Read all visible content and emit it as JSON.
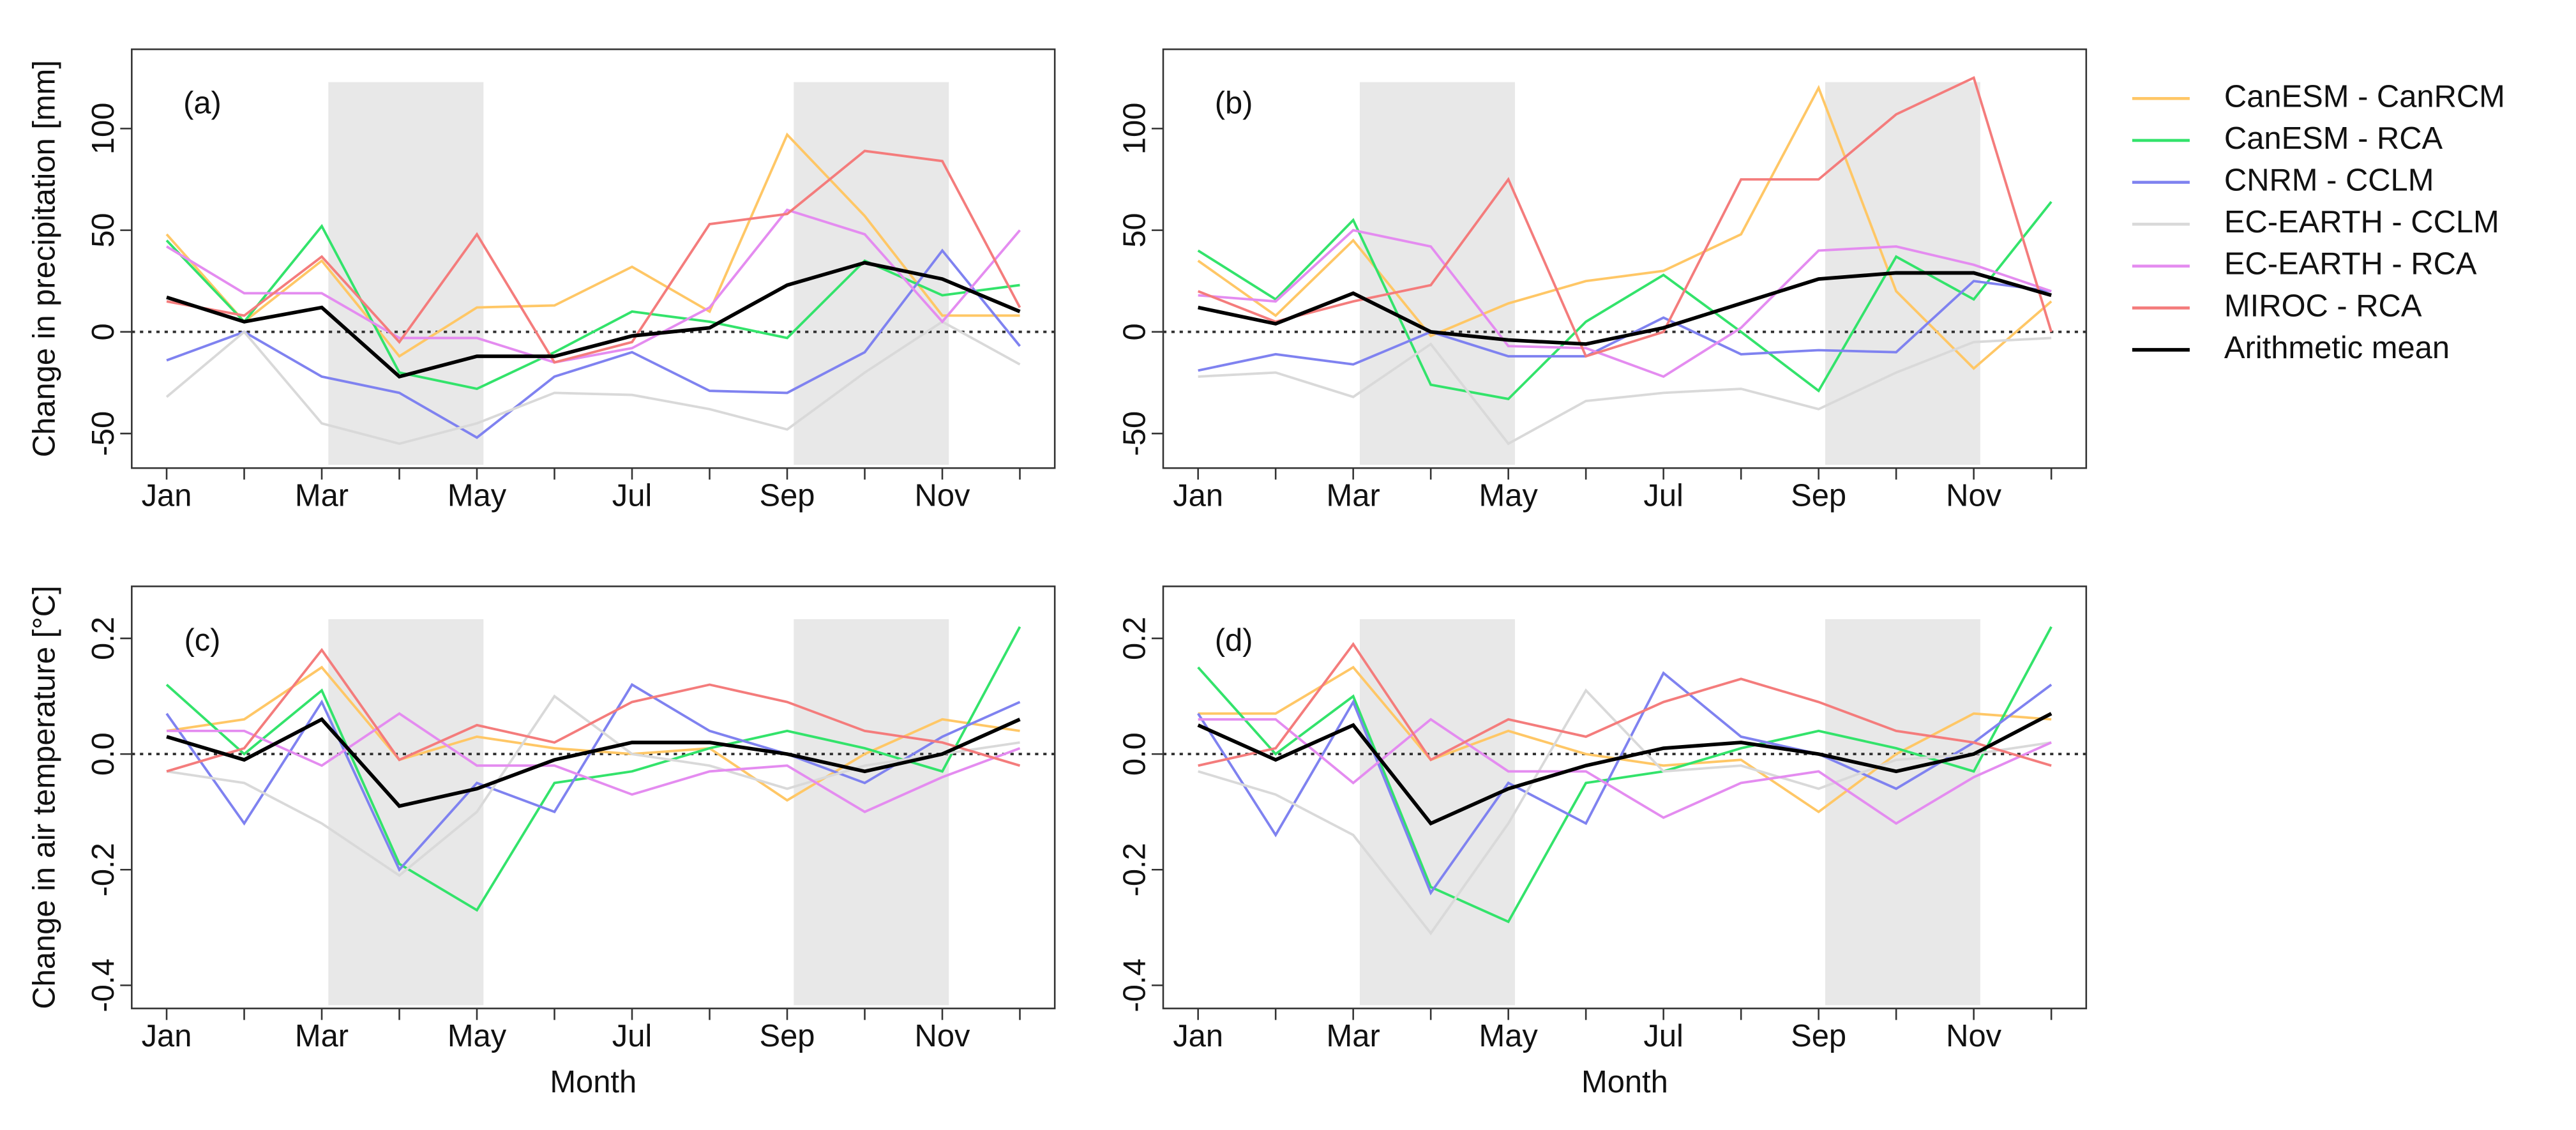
{
  "legend": [
    {
      "name": "CanESM - CanRCM",
      "color": "#ffc766"
    },
    {
      "name": "CanESM - RCA",
      "color": "#33e36b"
    },
    {
      "name": "CNRM - CCLM",
      "color": "#7f82f0"
    },
    {
      "name": "EC-EARTH - CCLM",
      "color": "#d9d9d9"
    },
    {
      "name": "EC-EARTH - RCA",
      "color": "#e48cf0"
    },
    {
      "name": "MIROC - RCA",
      "color": "#f47c7c"
    },
    {
      "name": "Arithmetic mean",
      "color": "#000000"
    }
  ],
  "chart_data": [
    {
      "type": "line",
      "label": "(a)",
      "ylabel": "Change in precipitation [mm]",
      "categories": [
        "Jan",
        null,
        "Mar",
        null,
        "May",
        null,
        "Jul",
        null,
        "Sep",
        null,
        "Nov",
        null
      ],
      "ylim": [
        -67,
        139
      ],
      "yticks": [
        -50,
        0,
        50,
        100
      ],
      "series": [
        {
          "values": [
            48,
            5,
            35,
            -12,
            12,
            13,
            32,
            10,
            97,
            57,
            8,
            8
          ]
        },
        {
          "values": [
            45,
            5,
            52,
            -20,
            -28,
            -10,
            10,
            5,
            -3,
            35,
            18,
            23
          ]
        },
        {
          "values": [
            -14,
            0,
            -22,
            -30,
            -52,
            -22,
            -10,
            -29,
            -30,
            -10,
            40,
            -7
          ]
        },
        {
          "values": [
            -32,
            0,
            -45,
            -55,
            -45,
            -30,
            -31,
            -38,
            -48,
            -20,
            5,
            -16
          ]
        },
        {
          "values": [
            42,
            19,
            19,
            -3,
            -3,
            -15,
            -8,
            12,
            60,
            48,
            5,
            50
          ]
        },
        {
          "values": [
            15,
            8,
            37,
            -5,
            48,
            -15,
            -5,
            53,
            58,
            89,
            84,
            12
          ]
        },
        {
          "values": [
            17,
            5,
            12,
            -22,
            -12,
            -12,
            -2,
            2,
            23,
            34,
            26,
            10
          ]
        }
      ]
    },
    {
      "type": "line",
      "label": "(b)",
      "categories": [
        "Jan",
        null,
        "Mar",
        null,
        "May",
        null,
        "Jul",
        null,
        "Sep",
        null,
        "Nov",
        null
      ],
      "ylim": [
        -67,
        139
      ],
      "yticks": [
        -50,
        0,
        50,
        100
      ],
      "series": [
        {
          "values": [
            35,
            8,
            45,
            -2,
            14,
            25,
            30,
            48,
            120,
            20,
            -18,
            15
          ]
        },
        {
          "values": [
            40,
            16,
            55,
            -26,
            -33,
            5,
            28,
            0,
            -29,
            37,
            16,
            64
          ]
        },
        {
          "values": [
            -19,
            -11,
            -16,
            0,
            -12,
            -12,
            7,
            -11,
            -9,
            -10,
            25,
            20
          ]
        },
        {
          "values": [
            -22,
            -20,
            -32,
            -6,
            -55,
            -34,
            -30,
            -28,
            -38,
            -20,
            -5,
            -3
          ]
        },
        {
          "values": [
            18,
            15,
            50,
            42,
            -7,
            -8,
            -22,
            2,
            40,
            42,
            33,
            20
          ]
        },
        {
          "values": [
            20,
            5,
            15,
            23,
            75,
            -12,
            0,
            75,
            75,
            107,
            125,
            0
          ]
        },
        {
          "values": [
            12,
            4,
            19,
            0,
            -4,
            -6,
            2,
            14,
            26,
            29,
            29,
            18
          ]
        }
      ]
    },
    {
      "type": "line",
      "label": "(c)",
      "ylabel": "Change in air temperature [°C]",
      "xlabel": "Month",
      "categories": [
        "Jan",
        null,
        "Mar",
        null,
        "May",
        null,
        "Jul",
        null,
        "Sep",
        null,
        "Nov",
        null
      ],
      "ylim": [
        -0.44,
        0.29
      ],
      "yticks": [
        -0.4,
        -0.2,
        {
          "value": 0,
          "label": "0.0"
        },
        0.2
      ],
      "series": [
        {
          "values": [
            0.04,
            0.06,
            0.15,
            -0.01,
            0.03,
            0.01,
            0.0,
            0.01,
            -0.08,
            0.0,
            0.06,
            0.04
          ]
        },
        {
          "values": [
            0.12,
            0.0,
            0.11,
            -0.19,
            -0.27,
            -0.05,
            -0.03,
            0.01,
            0.04,
            0.01,
            -0.03,
            0.22
          ]
        },
        {
          "values": [
            0.07,
            -0.12,
            0.09,
            -0.2,
            -0.05,
            -0.1,
            0.12,
            0.04,
            0.0,
            -0.05,
            0.03,
            0.09
          ]
        },
        {
          "values": [
            -0.03,
            -0.05,
            -0.12,
            -0.21,
            -0.1,
            0.1,
            0.0,
            -0.02,
            -0.06,
            -0.02,
            0.0,
            0.02
          ]
        },
        {
          "values": [
            0.04,
            0.04,
            -0.02,
            0.07,
            -0.02,
            -0.02,
            -0.07,
            -0.03,
            -0.02,
            -0.1,
            -0.04,
            0.01
          ]
        },
        {
          "values": [
            -0.03,
            0.01,
            0.18,
            -0.01,
            0.05,
            0.02,
            0.09,
            0.12,
            0.09,
            0.04,
            0.02,
            -0.02
          ]
        },
        {
          "values": [
            0.03,
            -0.01,
            0.06,
            -0.09,
            -0.06,
            -0.01,
            0.02,
            0.02,
            0.0,
            -0.03,
            0.0,
            0.06
          ]
        }
      ]
    },
    {
      "type": "line",
      "label": "(d)",
      "xlabel": "Month",
      "categories": [
        "Jan",
        null,
        "Mar",
        null,
        "May",
        null,
        "Jul",
        null,
        "Sep",
        null,
        "Nov",
        null
      ],
      "ylim": [
        -0.44,
        0.29
      ],
      "yticks": [
        -0.4,
        -0.2,
        {
          "value": 0,
          "label": "0.0"
        },
        0.2
      ],
      "series": [
        {
          "values": [
            0.07,
            0.07,
            0.15,
            -0.01,
            0.04,
            0.0,
            -0.02,
            -0.01,
            -0.1,
            0.0,
            0.07,
            0.06
          ]
        },
        {
          "values": [
            0.15,
            0.0,
            0.1,
            -0.23,
            -0.29,
            -0.05,
            -0.03,
            0.01,
            0.04,
            0.01,
            -0.03,
            0.22
          ]
        },
        {
          "values": [
            0.07,
            -0.14,
            0.09,
            -0.24,
            -0.05,
            -0.12,
            0.14,
            0.03,
            0.0,
            -0.06,
            0.02,
            0.12
          ]
        },
        {
          "values": [
            -0.03,
            -0.07,
            -0.14,
            -0.31,
            -0.12,
            0.11,
            -0.03,
            -0.02,
            -0.06,
            -0.01,
            0.0,
            0.02
          ]
        },
        {
          "values": [
            0.06,
            0.06,
            -0.05,
            0.06,
            -0.03,
            -0.03,
            -0.11,
            -0.05,
            -0.03,
            -0.12,
            -0.04,
            0.02
          ]
        },
        {
          "values": [
            -0.02,
            0.01,
            0.19,
            -0.01,
            0.06,
            0.03,
            0.09,
            0.13,
            0.09,
            0.04,
            0.02,
            -0.02
          ]
        },
        {
          "values": [
            0.05,
            -0.01,
            0.05,
            -0.12,
            -0.06,
            -0.02,
            0.01,
            0.02,
            0.0,
            -0.03,
            0.0,
            0.07
          ]
        }
      ]
    }
  ]
}
